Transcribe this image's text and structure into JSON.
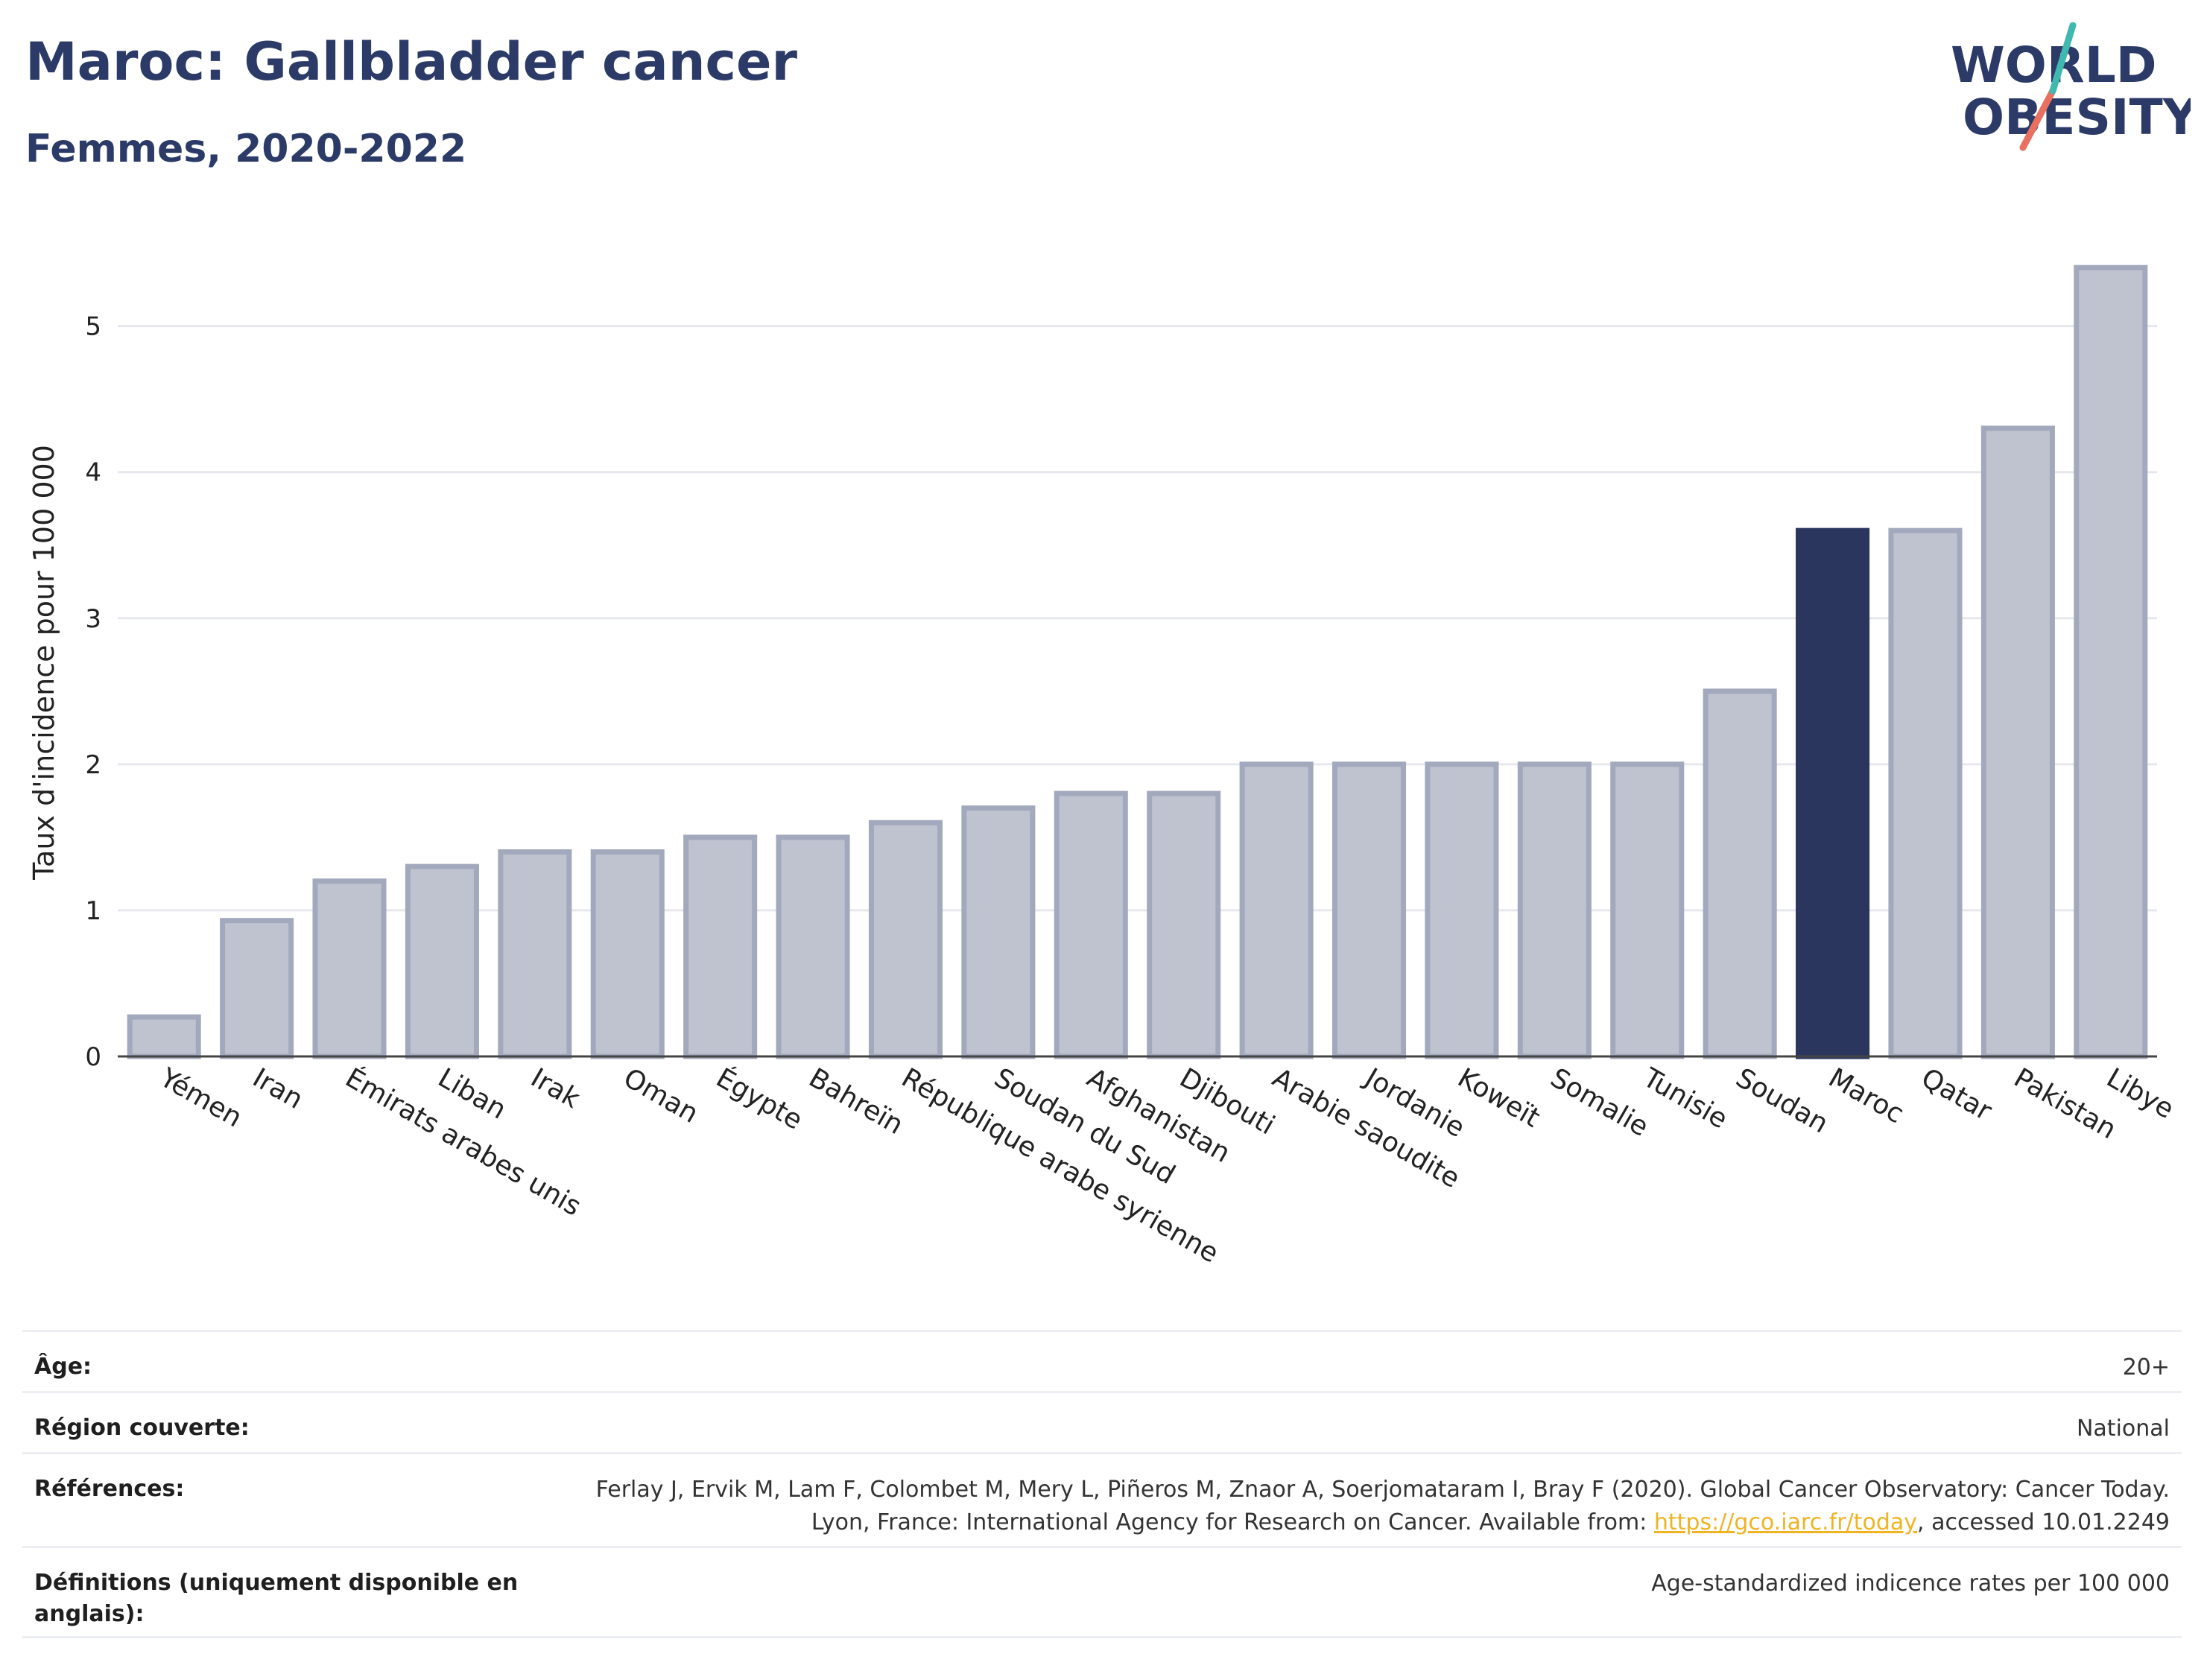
{
  "header": {
    "title": "Maroc: Gallbladder cancer",
    "subtitle": "Femmes, 2020-2022",
    "logo_line1": "WORLD",
    "logo_line2": "OBESITY"
  },
  "colors": {
    "title": "#2b3a67",
    "bar_default": "#bfc3d0",
    "bar_default_stroke": "#a3a9bd",
    "bar_highlight": "#2b365f",
    "logo_teal": "#3fb8b0",
    "logo_coral": "#e8705f",
    "link": "#f0b323"
  },
  "chart_data": {
    "type": "bar",
    "ylabel": "Taux d'incidence pour 100 000",
    "ylim": [
      0,
      5.6
    ],
    "yticks": [
      "0",
      "1",
      "2",
      "3",
      "4",
      "5"
    ],
    "grid": true,
    "highlight": "Maroc",
    "categories": [
      "Yémen",
      "Iran",
      "Émirats arabes unis",
      "Liban",
      "Irak",
      "Oman",
      "Égypte",
      "Bahreïn",
      "République arabe syrienne",
      "Soudan du Sud",
      "Afghanistan",
      "Djibouti",
      "Arabie saoudite",
      "Jordanie",
      "Koweït",
      "Somalie",
      "Tunisie",
      "Soudan",
      "Maroc",
      "Qatar",
      "Pakistan",
      "Libye"
    ],
    "values": [
      0.27,
      0.93,
      1.2,
      1.3,
      1.4,
      1.4,
      1.5,
      1.5,
      1.6,
      1.7,
      1.8,
      1.8,
      2.0,
      2.0,
      2.0,
      2.0,
      2.0,
      2.5,
      3.6,
      3.6,
      4.3,
      5.4
    ]
  },
  "meta": {
    "age_label": "Âge:",
    "age_value": "20+",
    "region_label": "Région couverte:",
    "region_value": "National",
    "refs_label": "Références:",
    "refs_text_1": "Ferlay J, Ervik M, Lam F, Colombet M, Mery L, Piñeros M, Znaor A, Soerjomataram I, Bray F (2020). Global Cancer Observatory: Cancer Today. Lyon, France: International Agency for Research on Cancer. Available from: ",
    "refs_link": "https://gco.iarc.fr/today",
    "refs_text_2": ", accessed 10.01.2249",
    "defs_label": "Définitions (uniquement disponible en anglais):",
    "defs_value": "Age-standardized indicence rates per 100 000"
  }
}
